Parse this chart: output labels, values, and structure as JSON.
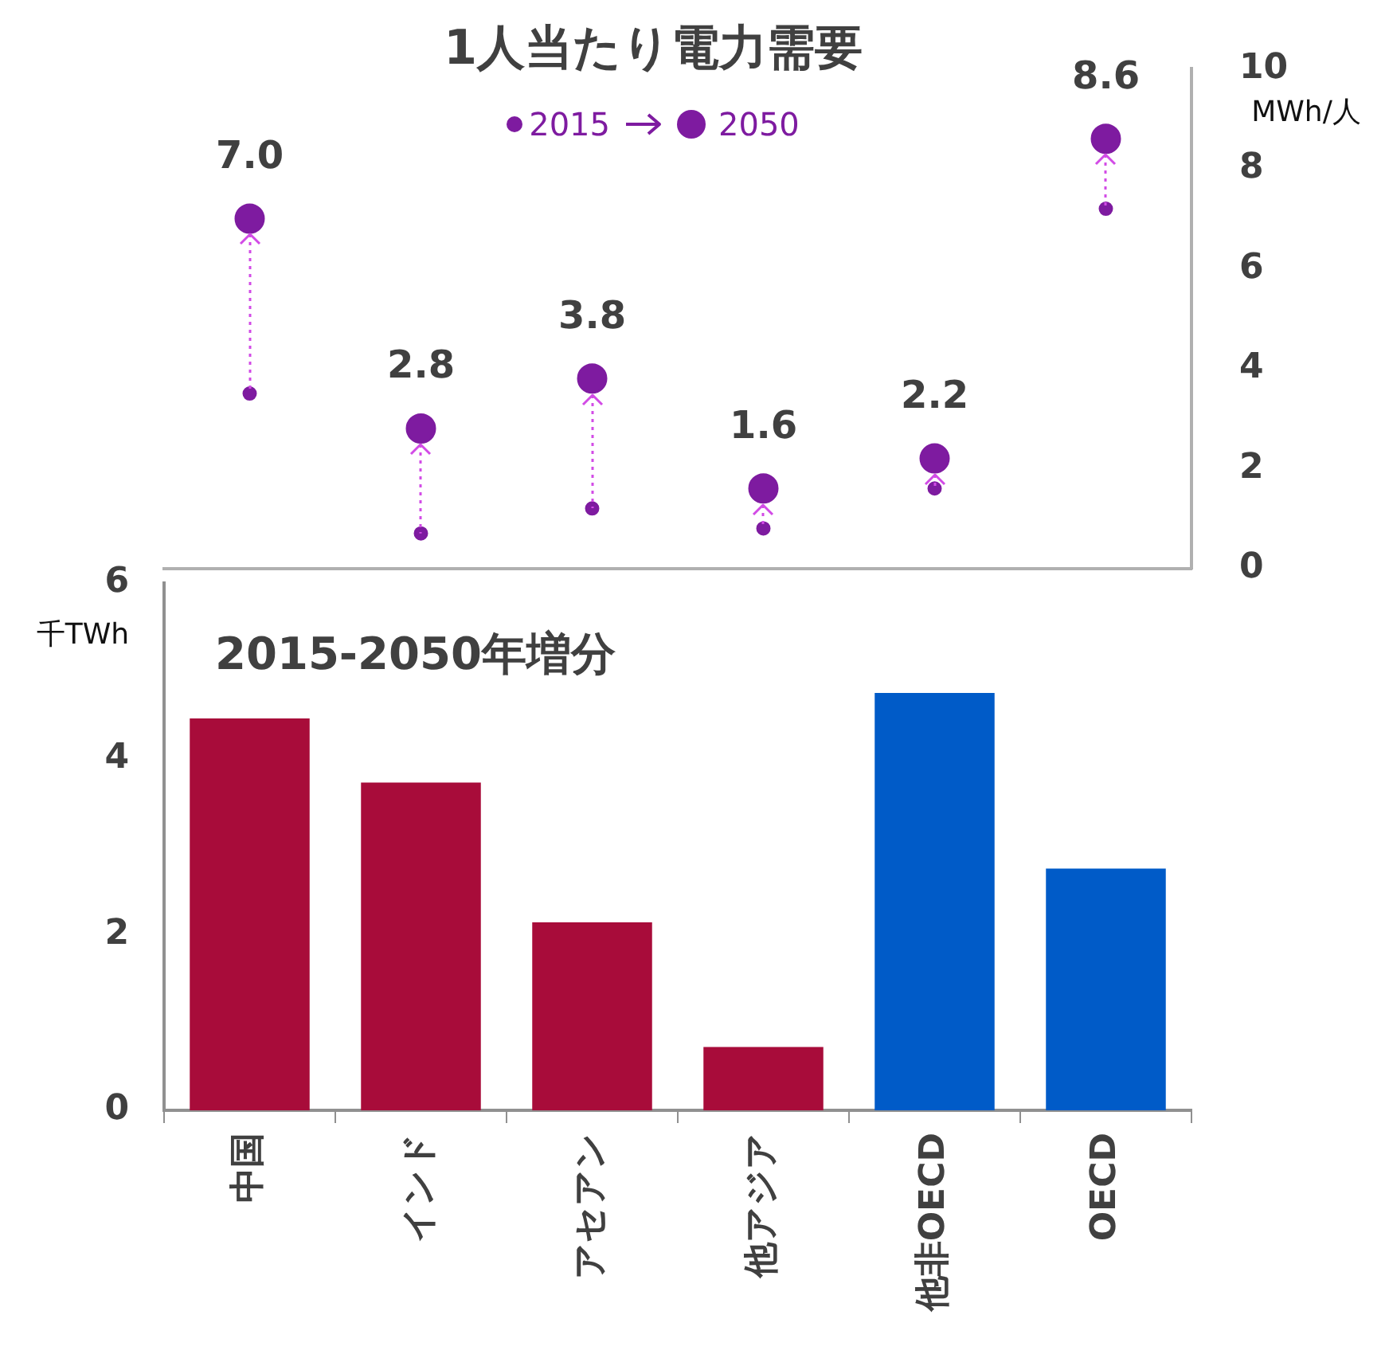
{
  "chart_data": [
    {
      "type": "scatter",
      "title": "1人当たり電力需要",
      "ylabel": "MWh/人",
      "categories": [
        null,
        null,
        null,
        null,
        null,
        null
      ],
      "series": [
        {
          "name": "2015",
          "color": "#7e1ba0",
          "values": [
            3.5,
            0.7,
            1.2,
            0.8,
            1.6,
            7.2
          ]
        },
        {
          "name": "2050",
          "color": "#7e1ba0",
          "values": [
            7.0,
            2.8,
            3.8,
            1.6,
            2.2,
            8.6
          ],
          "value_labels": [
            "7.0",
            "2.8",
            "3.8",
            "1.6",
            "2.2",
            "8.6"
          ]
        }
      ],
      "ylim": [
        0,
        10
      ],
      "yticks": [
        0,
        2,
        4,
        6,
        8,
        10
      ],
      "tick_labels": "y",
      "legend": "top",
      "marker": "circle"
    },
    {
      "type": "bar",
      "title": "2015-2050年増分",
      "ylabel": "千TWh",
      "categories": [
        "中国",
        "インド",
        "アセアン",
        "他アジア",
        "他非OECD",
        "OECD"
      ],
      "values": [
        4.46,
        3.73,
        2.14,
        0.72,
        4.75,
        2.75
      ],
      "colors": [
        "#a80c3a",
        "#a80c3a",
        "#a80c3a",
        "#a80c3a",
        "#005bc8",
        "#005bc8"
      ],
      "ylim": [
        0,
        6
      ],
      "yticks": [
        0,
        2,
        4,
        6
      ]
    }
  ]
}
